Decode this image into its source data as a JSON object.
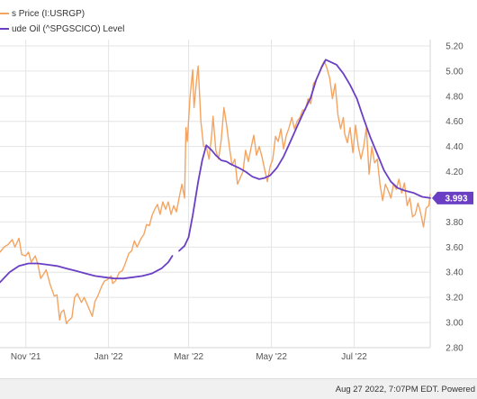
{
  "legend": {
    "series_1": "s Price (I:USRGP)",
    "series_2": "ude Oil (^SPGSCICO) Level"
  },
  "footer": {
    "text": "Aug 27 2022, 7:07PM EDT. Powered"
  },
  "chart_data": {
    "type": "line",
    "y_axis": {
      "position": "right",
      "ticks": [
        "2.80",
        "3.00",
        "3.20",
        "3.40",
        "3.60",
        "3.80",
        "4.00",
        "4.20",
        "4.40",
        "4.60",
        "4.80",
        "5.00",
        "5.20"
      ],
      "ylim": [
        2.8,
        5.25
      ]
    },
    "x_axis": {
      "ticks": [
        "Nov '21",
        "Jan '22",
        "Mar '22",
        "May '22",
        "Jul '22"
      ],
      "tick_dates": [
        "2021-11-01",
        "2022-01-01",
        "2022-03-01",
        "2022-05-01",
        "2022-07-01"
      ],
      "xlim": [
        "2021-10-13",
        "2022-08-26"
      ]
    },
    "grid": true,
    "last_value_label": "3.993",
    "series": [
      {
        "color": "#f4a460",
        "points": [
          [
            "2021-10-13",
            3.56
          ],
          [
            "2021-10-16",
            3.6
          ],
          [
            "2021-10-19",
            3.62
          ],
          [
            "2021-10-22",
            3.66
          ],
          [
            "2021-10-24",
            3.6
          ],
          [
            "2021-10-27",
            3.67
          ],
          [
            "2021-10-29",
            3.54
          ],
          [
            "2021-11-01",
            3.53
          ],
          [
            "2021-11-03",
            3.56
          ],
          [
            "2021-11-05",
            3.48
          ],
          [
            "2021-11-08",
            3.53
          ],
          [
            "2021-11-10",
            3.46
          ],
          [
            "2021-11-12",
            3.35
          ],
          [
            "2021-11-15",
            3.4
          ],
          [
            "2021-11-16",
            3.42
          ],
          [
            "2021-11-19",
            3.3
          ],
          [
            "2021-11-22",
            3.21
          ],
          [
            "2021-11-24",
            3.22
          ],
          [
            "2021-11-26",
            3.02
          ],
          [
            "2021-11-27",
            3.08
          ],
          [
            "2021-11-29",
            3.1
          ],
          [
            "2021-12-01",
            2.99
          ],
          [
            "2021-12-02",
            3.01
          ],
          [
            "2021-12-05",
            3.04
          ],
          [
            "2021-12-07",
            3.2
          ],
          [
            "2021-12-09",
            3.23
          ],
          [
            "2021-12-12",
            3.16
          ],
          [
            "2021-12-14",
            3.2
          ],
          [
            "2021-12-16",
            3.15
          ],
          [
            "2021-12-18",
            3.1
          ],
          [
            "2021-12-20",
            3.05
          ],
          [
            "2021-12-22",
            3.17
          ],
          [
            "2021-12-24",
            3.21
          ],
          [
            "2021-12-27",
            3.29
          ],
          [
            "2021-12-29",
            3.33
          ],
          [
            "2021-12-31",
            3.34
          ],
          [
            "2022-01-03",
            3.37
          ],
          [
            "2022-01-04",
            3.31
          ],
          [
            "2022-01-06",
            3.33
          ],
          [
            "2022-01-09",
            3.4
          ],
          [
            "2022-01-11",
            3.41
          ],
          [
            "2022-01-13",
            3.46
          ],
          [
            "2022-01-16",
            3.55
          ],
          [
            "2022-01-18",
            3.57
          ],
          [
            "2022-01-20",
            3.65
          ],
          [
            "2022-01-22",
            3.6
          ],
          [
            "2022-01-25",
            3.67
          ],
          [
            "2022-01-27",
            3.7
          ],
          [
            "2022-01-29",
            3.78
          ],
          [
            "2022-01-31",
            3.77
          ],
          [
            "2022-02-02",
            3.85
          ],
          [
            "2022-02-04",
            3.9
          ],
          [
            "2022-02-06",
            3.94
          ],
          [
            "2022-02-08",
            3.86
          ],
          [
            "2022-02-10",
            3.96
          ],
          [
            "2022-02-12",
            3.9
          ],
          [
            "2022-02-14",
            3.96
          ],
          [
            "2022-02-16",
            3.86
          ],
          [
            "2022-02-18",
            3.93
          ],
          [
            "2022-02-20",
            3.88
          ],
          [
            "2022-02-22",
            3.99
          ],
          [
            "2022-02-24",
            4.1
          ],
          [
            "2022-02-26",
            3.99
          ],
          [
            "2022-02-27",
            4.55
          ],
          [
            "2022-02-28",
            4.44
          ],
          [
            "2022-03-02",
            4.79
          ],
          [
            "2022-03-04",
            5.01
          ],
          [
            "2022-03-05",
            4.71
          ],
          [
            "2022-03-07",
            4.94
          ],
          [
            "2022-03-08",
            5.04
          ],
          [
            "2022-03-10",
            4.6
          ],
          [
            "2022-03-12",
            4.4
          ],
          [
            "2022-03-14",
            4.4
          ],
          [
            "2022-03-16",
            4.3
          ],
          [
            "2022-03-18",
            4.49
          ],
          [
            "2022-03-19",
            4.64
          ],
          [
            "2022-03-21",
            4.37
          ],
          [
            "2022-03-23",
            4.3
          ],
          [
            "2022-03-25",
            4.45
          ],
          [
            "2022-03-27",
            4.71
          ],
          [
            "2022-03-29",
            4.57
          ],
          [
            "2022-03-31",
            4.4
          ],
          [
            "2022-04-02",
            4.25
          ],
          [
            "2022-04-04",
            4.3
          ],
          [
            "2022-04-06",
            4.1
          ],
          [
            "2022-04-08",
            4.15
          ],
          [
            "2022-04-10",
            4.2
          ],
          [
            "2022-04-12",
            4.37
          ],
          [
            "2022-04-14",
            4.28
          ],
          [
            "2022-04-16",
            4.39
          ],
          [
            "2022-04-18",
            4.49
          ],
          [
            "2022-04-20",
            4.33
          ],
          [
            "2022-04-22",
            4.4
          ],
          [
            "2022-04-24",
            4.32
          ],
          [
            "2022-04-26",
            4.22
          ],
          [
            "2022-04-28",
            4.12
          ],
          [
            "2022-04-30",
            4.24
          ],
          [
            "2022-05-02",
            4.3
          ],
          [
            "2022-05-04",
            4.48
          ],
          [
            "2022-05-06",
            4.44
          ],
          [
            "2022-05-08",
            4.54
          ],
          [
            "2022-05-10",
            4.38
          ],
          [
            "2022-05-12",
            4.49
          ],
          [
            "2022-05-14",
            4.55
          ],
          [
            "2022-05-16",
            4.63
          ],
          [
            "2022-05-18",
            4.54
          ],
          [
            "2022-05-20",
            4.6
          ],
          [
            "2022-05-22",
            4.63
          ],
          [
            "2022-05-24",
            4.69
          ],
          [
            "2022-05-26",
            4.69
          ],
          [
            "2022-05-28",
            4.78
          ],
          [
            "2022-05-30",
            4.74
          ],
          [
            "2022-06-01",
            4.9
          ],
          [
            "2022-06-03",
            4.93
          ],
          [
            "2022-06-05",
            4.98
          ],
          [
            "2022-06-07",
            5.04
          ],
          [
            "2022-06-09",
            5.08
          ],
          [
            "2022-06-11",
            5.02
          ],
          [
            "2022-06-13",
            4.94
          ],
          [
            "2022-06-15",
            4.78
          ],
          [
            "2022-06-17",
            4.9
          ],
          [
            "2022-06-19",
            4.65
          ],
          [
            "2022-06-21",
            4.54
          ],
          [
            "2022-06-23",
            4.63
          ],
          [
            "2022-06-24",
            4.5
          ],
          [
            "2022-06-26",
            4.43
          ],
          [
            "2022-06-28",
            4.55
          ],
          [
            "2022-06-30",
            4.35
          ],
          [
            "2022-07-02",
            4.57
          ],
          [
            "2022-07-04",
            4.4
          ],
          [
            "2022-07-06",
            4.3
          ],
          [
            "2022-07-08",
            4.4
          ],
          [
            "2022-07-10",
            4.55
          ],
          [
            "2022-07-12",
            4.18
          ],
          [
            "2022-07-14",
            4.4
          ],
          [
            "2022-07-16",
            4.27
          ],
          [
            "2022-07-18",
            4.3
          ],
          [
            "2022-07-20",
            4.1
          ],
          [
            "2022-07-22",
            3.97
          ],
          [
            "2022-07-24",
            4.1
          ],
          [
            "2022-07-26",
            4.05
          ],
          [
            "2022-07-28",
            3.99
          ],
          [
            "2022-07-30",
            4.1
          ],
          [
            "2022-08-01",
            4.06
          ],
          [
            "2022-08-03",
            4.14
          ],
          [
            "2022-08-05",
            4.03
          ],
          [
            "2022-08-07",
            4.11
          ],
          [
            "2022-08-09",
            3.93
          ],
          [
            "2022-08-11",
            3.99
          ],
          [
            "2022-08-13",
            3.84
          ],
          [
            "2022-08-15",
            3.86
          ],
          [
            "2022-08-17",
            3.95
          ],
          [
            "2022-08-19",
            3.87
          ],
          [
            "2022-08-21",
            3.76
          ],
          [
            "2022-08-23",
            3.91
          ],
          [
            "2022-08-25",
            3.93
          ],
          [
            "2022-08-26",
            4.02
          ]
        ]
      },
      {
        "color": "#6b3fc4",
        "label": "3.993",
        "points": [
          [
            "2021-10-13",
            3.32
          ],
          [
            "2021-10-20",
            3.4
          ],
          [
            "2021-10-27",
            3.45
          ],
          [
            "2021-11-03",
            3.47
          ],
          [
            "2021-11-10",
            3.47
          ],
          [
            "2021-11-17",
            3.46
          ],
          [
            "2021-11-24",
            3.45
          ],
          [
            "2021-12-01",
            3.43
          ],
          [
            "2021-12-08",
            3.41
          ],
          [
            "2021-12-15",
            3.39
          ],
          [
            "2021-12-22",
            3.37
          ],
          [
            "2021-12-29",
            3.36
          ],
          [
            "2022-01-05",
            3.35
          ],
          [
            "2022-01-12",
            3.35
          ],
          [
            "2022-01-19",
            3.36
          ],
          [
            "2022-01-26",
            3.37
          ],
          [
            "2022-02-02",
            3.39
          ],
          [
            "2022-02-09",
            3.43
          ],
          [
            "2022-02-14",
            3.48
          ],
          [
            "2022-02-17",
            3.53
          ],
          null,
          [
            "2022-02-22",
            3.57
          ],
          [
            "2022-02-26",
            3.61
          ],
          [
            "2022-03-01",
            3.68
          ],
          [
            "2022-03-04",
            3.85
          ],
          [
            "2022-03-08",
            4.12
          ],
          [
            "2022-03-11",
            4.29
          ],
          [
            "2022-03-14",
            4.41
          ],
          [
            "2022-03-18",
            4.37
          ],
          [
            "2022-03-21",
            4.33
          ],
          [
            "2022-03-25",
            4.29
          ],
          [
            "2022-03-29",
            4.28
          ],
          [
            "2022-04-01",
            4.26
          ],
          [
            "2022-04-07",
            4.23
          ],
          [
            "2022-04-12",
            4.2
          ],
          [
            "2022-04-17",
            4.16
          ],
          [
            "2022-04-22",
            4.14
          ],
          [
            "2022-04-26",
            4.15
          ],
          [
            "2022-04-30",
            4.17
          ],
          [
            "2022-05-05",
            4.23
          ],
          [
            "2022-05-10",
            4.32
          ],
          [
            "2022-05-15",
            4.44
          ],
          [
            "2022-05-20",
            4.56
          ],
          [
            "2022-05-25",
            4.68
          ],
          [
            "2022-05-30",
            4.79
          ],
          [
            "2022-06-03",
            4.93
          ],
          [
            "2022-06-07",
            5.03
          ],
          [
            "2022-06-10",
            5.09
          ],
          [
            "2022-06-14",
            5.07
          ],
          [
            "2022-06-18",
            5.05
          ],
          [
            "2022-06-23",
            4.98
          ],
          [
            "2022-06-28",
            4.89
          ],
          [
            "2022-07-03",
            4.78
          ],
          [
            "2022-07-08",
            4.62
          ],
          [
            "2022-07-13",
            4.47
          ],
          [
            "2022-07-18",
            4.34
          ],
          [
            "2022-07-23",
            4.21
          ],
          [
            "2022-07-28",
            4.12
          ],
          [
            "2022-08-02",
            4.07
          ],
          [
            "2022-08-07",
            4.05
          ],
          [
            "2022-08-14",
            4.03
          ],
          [
            "2022-08-20",
            4.0
          ],
          [
            "2022-08-26",
            3.99
          ]
        ]
      }
    ]
  }
}
